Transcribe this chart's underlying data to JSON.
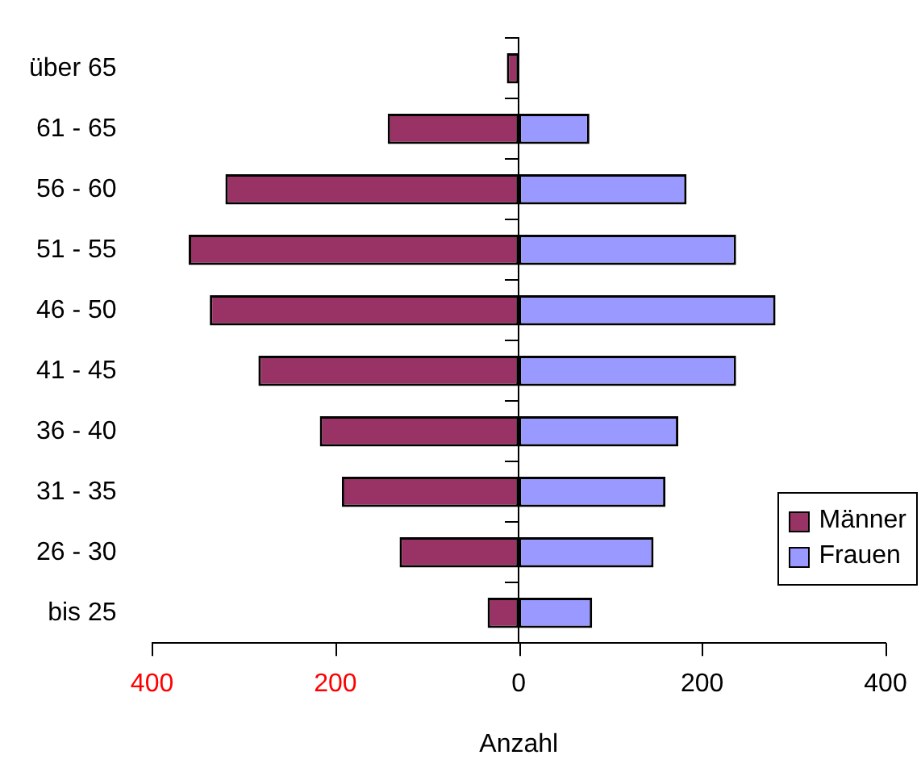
{
  "chart_data": {
    "type": "bar",
    "orientation": "horizontal",
    "stacked": true,
    "xlabel": "Anzahl",
    "categories": [
      "über 65",
      "61 - 65",
      "56 - 60",
      "51 - 55",
      "46 - 50",
      "41 - 45",
      "36 - 40",
      "31 - 35",
      "26 - 30",
      "bis 25"
    ],
    "series": [
      {
        "name": "Männer",
        "color": "#993366",
        "values": [
          -13,
          -143,
          -320,
          -360,
          -337,
          -284,
          -217,
          -193,
          -130,
          -34
        ]
      },
      {
        "name": "Frauen",
        "color": "#9999ff",
        "values": [
          null,
          77,
          183,
          237,
          280,
          237,
          174,
          160,
          147,
          80
        ]
      }
    ],
    "xlim": [
      -400,
      400
    ],
    "xticks": [
      {
        "value": -400,
        "label": "400"
      },
      {
        "value": -200,
        "label": "200"
      },
      0,
      200,
      400
    ],
    "legend": "right"
  }
}
